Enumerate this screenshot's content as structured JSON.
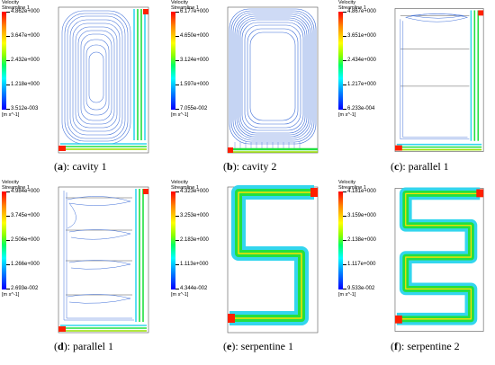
{
  "panels": [
    {
      "id": "cavity1",
      "caption_letter": "a",
      "caption_text": "cavity 1",
      "colorbar": {
        "title": "Velocity",
        "subtitle": "Streamline 1",
        "ticks": [
          "4.862e+000",
          "3.647e+000",
          "2.432e+000",
          "1.218e+000",
          "3.512e-003"
        ],
        "unit": "[m s^-1]"
      }
    },
    {
      "id": "cavity2",
      "caption_letter": "b",
      "caption_text": "cavity 2",
      "colorbar": {
        "title": "Velocity",
        "subtitle": "Streamline 1",
        "ticks": [
          "6.177e+000",
          "4.650e+000",
          "3.124e+000",
          "1.597e+000",
          "7.055e-002"
        ],
        "unit": "[m s^-1]"
      }
    },
    {
      "id": "parallel1a",
      "caption_letter": "c",
      "caption_text": "parallel 1",
      "colorbar": {
        "title": "Velocity",
        "subtitle": "Streamline 1",
        "ticks": [
          "4.867e+000",
          "3.651e+000",
          "2.434e+000",
          "1.217e+000",
          "6.233e-004"
        ],
        "unit": "[m s^-1]"
      }
    },
    {
      "id": "parallel1b",
      "caption_letter": "d",
      "caption_text": "parallel 1",
      "colorbar": {
        "title": "Velocity",
        "subtitle": "Streamline 1",
        "ticks": [
          "4.984e+000",
          "3.745e+000",
          "2.506e+000",
          "1.266e+000",
          "2.693e-002"
        ],
        "unit": "[m s^-1]"
      }
    },
    {
      "id": "serpentine1",
      "caption_letter": "e",
      "caption_text": "serpentine 1",
      "colorbar": {
        "title": "Velocity",
        "subtitle": "Streamline 1",
        "ticks": [
          "4.323e+000",
          "3.253e+000",
          "2.183e+000",
          "1.113e+000",
          "4.344e-002"
        ],
        "unit": "[m s^-1]"
      }
    },
    {
      "id": "serpentine2",
      "caption_letter": "f",
      "caption_text": "serpentine 2",
      "colorbar": {
        "title": "Velocity",
        "subtitle": "Streamline 1",
        "ticks": [
          "4.181e+000",
          "3.159e+000",
          "2.138e+000",
          "1.117e+000",
          "9.533e-002"
        ],
        "unit": "[m s^-1]"
      }
    }
  ],
  "colors": {
    "stream_blue": "#3f6fd8",
    "high": "#ff2000",
    "mid": "#22e040",
    "cyan": "#33d6ee",
    "frame": "#555555"
  }
}
